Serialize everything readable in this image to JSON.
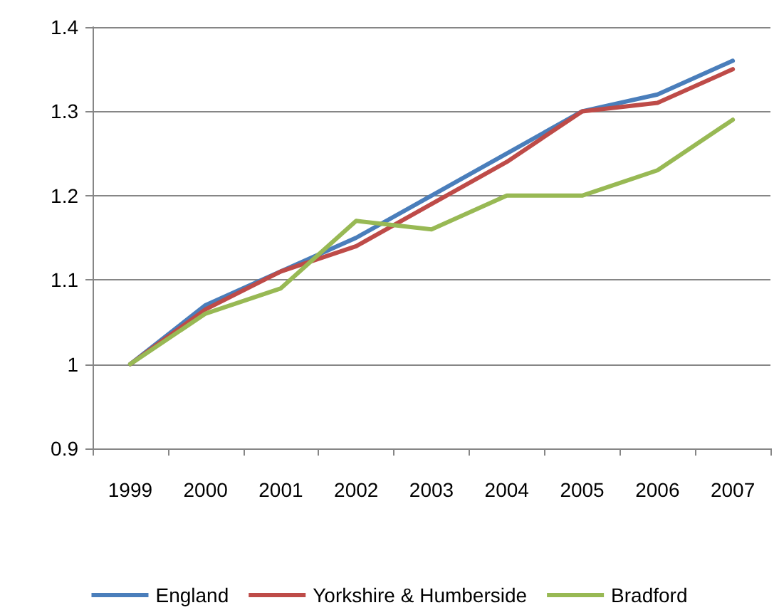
{
  "chart_data": {
    "type": "line",
    "categories": [
      "1999",
      "2000",
      "2001",
      "2002",
      "2003",
      "2004",
      "2005",
      "2006",
      "2007"
    ],
    "series": [
      {
        "name": "England",
        "color": "#4a7ebb",
        "values": [
          1.0,
          1.07,
          1.11,
          1.15,
          1.2,
          1.25,
          1.3,
          1.32,
          1.36
        ]
      },
      {
        "name": "Yorkshire & Humberside",
        "color": "#be4b48",
        "values": [
          1.0,
          1.065,
          1.11,
          1.14,
          1.19,
          1.24,
          1.3,
          1.31,
          1.35
        ]
      },
      {
        "name": "Bradford",
        "color": "#98b954",
        "values": [
          1.0,
          1.06,
          1.09,
          1.17,
          1.16,
          1.2,
          1.2,
          1.23,
          1.29
        ]
      }
    ],
    "ylim": [
      0.9,
      1.4
    ],
    "yticks": [
      0.9,
      1,
      1.1,
      1.2,
      1.3,
      1.4
    ],
    "grid": "y",
    "legend": "bottom",
    "marker": "none",
    "line_style": "solid"
  }
}
